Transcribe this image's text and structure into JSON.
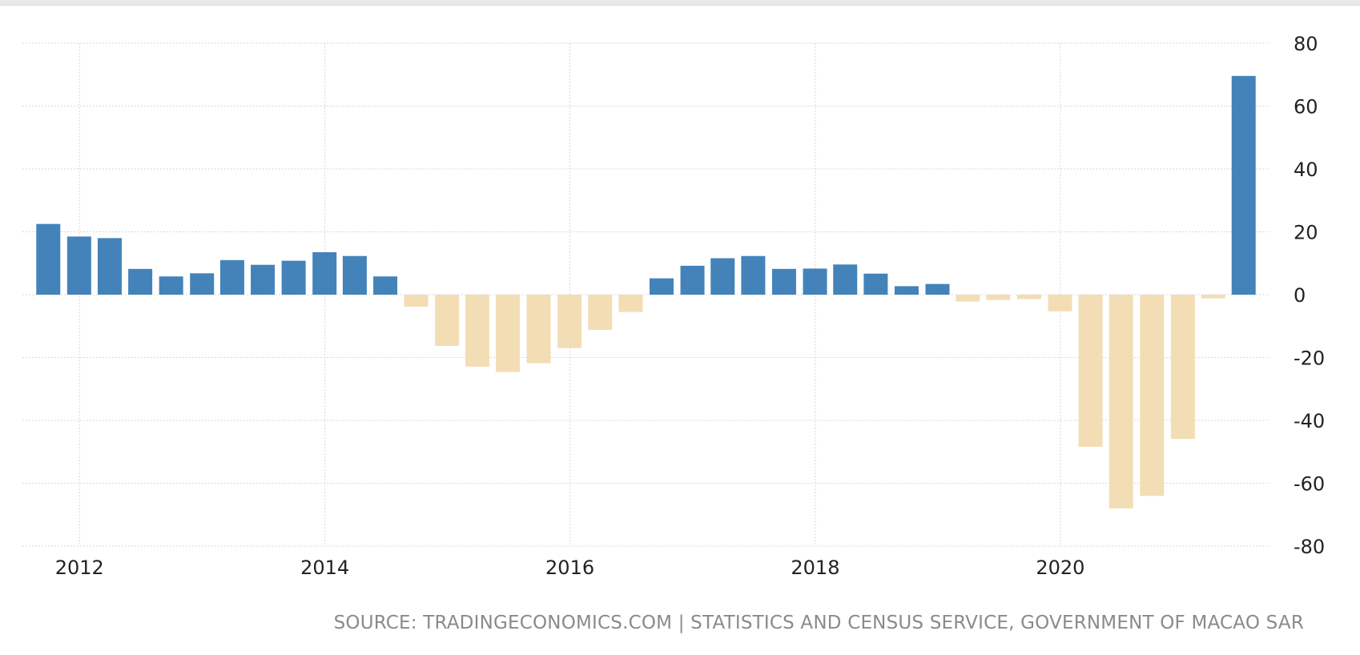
{
  "chart_data": {
    "type": "bar",
    "title": "",
    "xlabel": "",
    "ylabel": "",
    "x_ticks": [
      "2012",
      "2014",
      "2016",
      "2018",
      "2020"
    ],
    "y_ticks": [
      80,
      60,
      40,
      20,
      0,
      -20,
      -40,
      -60,
      -80
    ],
    "ylim": [
      -80,
      80
    ],
    "xlim": [
      "2011-07-15",
      "2021-09-15"
    ],
    "grid": true,
    "colors": {
      "positive": "#4383b9",
      "negative": "#f3ddb5",
      "grid": "#d9d9d9"
    },
    "series": [
      {
        "x": [
          "2011-09-30",
          "2011-12-31",
          "2012-03-31",
          "2012-06-30",
          "2012-09-30",
          "2012-12-31",
          "2013-03-31",
          "2013-06-30",
          "2013-09-30",
          "2013-12-31",
          "2014-03-31",
          "2014-06-30",
          "2014-09-30",
          "2014-12-31",
          "2015-03-31",
          "2015-06-30",
          "2015-09-30",
          "2015-12-31",
          "2016-03-31",
          "2016-06-30",
          "2016-09-30",
          "2016-12-31",
          "2017-03-31",
          "2017-06-30",
          "2017-09-30",
          "2017-12-31",
          "2018-03-31",
          "2018-06-30",
          "2018-09-30",
          "2018-12-31",
          "2019-03-31",
          "2019-06-30",
          "2019-09-30",
          "2019-12-31",
          "2020-03-31",
          "2020-06-30",
          "2020-09-30",
          "2020-12-31",
          "2021-03-31",
          "2021-06-30"
        ],
        "values": [
          22.5,
          18.5,
          18.0,
          8.2,
          5.8,
          6.8,
          11.0,
          9.5,
          10.8,
          13.5,
          12.3,
          5.8,
          -3.8,
          -16.3,
          -22.9,
          -24.6,
          -21.8,
          -17.0,
          -11.2,
          -5.5,
          5.2,
          9.2,
          11.6,
          12.3,
          8.2,
          8.3,
          9.6,
          6.7,
          2.7,
          3.4,
          -2.2,
          -1.7,
          -1.4,
          -5.3,
          -48.4,
          -68.0,
          -64.0,
          -45.9,
          -1.2,
          69.6
        ]
      }
    ]
  },
  "source": {
    "text": "SOURCE: TRADINGECONOMICS.COM | STATISTICS AND CENSUS SERVICE, GOVERNMENT OF MACAO SAR"
  }
}
